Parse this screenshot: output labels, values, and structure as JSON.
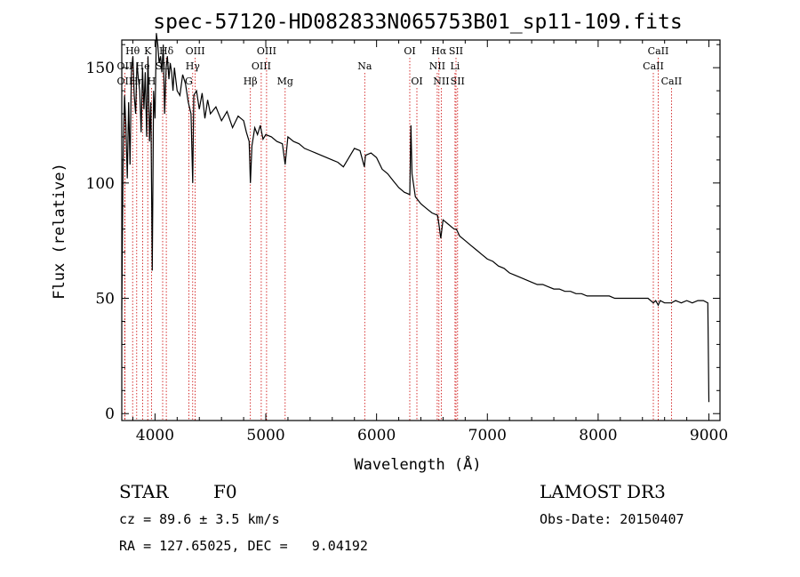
{
  "chart_data": {
    "type": "line",
    "title": "spec-57120-HD082833N065753B01_sp11-109.fits",
    "xlabel": "Wavelength (Å)",
    "ylabel": "Flux (relative)",
    "xlim": [
      3700,
      9100
    ],
    "ylim": [
      -3,
      162
    ],
    "x_ticks": [
      4000,
      5000,
      6000,
      7000,
      8000,
      9000
    ],
    "y_ticks": [
      0,
      50,
      100,
      150
    ],
    "grid": false,
    "series": [
      {
        "x": [
          3700,
          3712,
          3725,
          3737,
          3750,
          3762,
          3775,
          3787,
          3800,
          3812,
          3825,
          3837,
          3850,
          3862,
          3875,
          3887,
          3900,
          3912,
          3925,
          3937,
          3950,
          3962,
          3975,
          3987,
          4000,
          4012,
          4025,
          4037,
          4050,
          4062,
          4075,
          4087,
          4100,
          4112,
          4125,
          4137,
          4150,
          4162,
          4175,
          4187,
          4200,
          4225,
          4250,
          4275,
          4300,
          4325,
          4340,
          4350,
          4375,
          4400,
          4425,
          4450,
          4475,
          4500,
          4550,
          4600,
          4650,
          4700,
          4750,
          4800,
          4825,
          4850,
          4861,
          4875,
          4900,
          4925,
          4950,
          4975,
          5000,
          5050,
          5100,
          5150,
          5175,
          5200,
          5250,
          5300,
          5350,
          5400,
          5450,
          5500,
          5550,
          5600,
          5650,
          5700,
          5750,
          5800,
          5850,
          5890,
          5900,
          5950,
          6000,
          6050,
          6100,
          6150,
          6200,
          6250,
          6300,
          6310,
          6320,
          6350,
          6400,
          6450,
          6500,
          6550,
          6563,
          6580,
          6600,
          6650,
          6700,
          6720,
          6750,
          6800,
          6850,
          6900,
          6950,
          7000,
          7050,
          7100,
          7150,
          7200,
          7250,
          7300,
          7350,
          7400,
          7450,
          7500,
          7550,
          7600,
          7650,
          7700,
          7750,
          7800,
          7850,
          7900,
          7950,
          8000,
          8050,
          8100,
          8150,
          8200,
          8250,
          8300,
          8350,
          8400,
          8450,
          8498,
          8520,
          8542,
          8560,
          8600,
          8662,
          8700,
          8750,
          8800,
          8850,
          8900,
          8950,
          8990,
          9000
        ],
        "y": [
          45,
          110,
          138,
          125,
          102,
          135,
          108,
          148,
          155,
          138,
          130,
          152,
          145,
          140,
          122,
          150,
          132,
          148,
          120,
          155,
          118,
          135,
          62,
          140,
          128,
          165,
          160,
          152,
          155,
          148,
          160,
          130,
          150,
          155,
          145,
          152,
          148,
          140,
          150,
          145,
          140,
          138,
          147,
          143,
          135,
          130,
          100,
          138,
          140,
          132,
          139,
          128,
          136,
          130,
          133,
          127,
          131,
          124,
          129,
          127,
          122,
          118,
          100,
          116,
          124,
          121,
          125,
          119,
          121,
          120,
          118,
          117,
          108,
          120,
          118,
          117,
          115,
          114,
          113,
          112,
          111,
          110,
          109,
          107,
          111,
          115,
          114,
          107,
          112,
          113,
          111,
          106,
          104,
          101,
          98,
          96,
          95,
          125,
          104,
          94,
          91,
          89,
          87,
          86,
          82,
          76,
          84,
          82,
          80,
          80,
          77,
          75,
          73,
          71,
          69,
          67,
          66,
          64,
          63,
          61,
          60,
          59,
          58,
          57,
          56,
          56,
          55,
          54,
          54,
          53,
          53,
          52,
          52,
          51,
          51,
          51,
          51,
          51,
          50,
          50,
          50,
          50,
          50,
          50,
          50,
          48,
          49,
          47,
          49,
          48,
          48,
          49,
          48,
          49,
          48,
          49,
          49,
          48,
          5
        ]
      }
    ],
    "lines": [
      {
        "label": "Hθ",
        "x": 3798,
        "row": 1
      },
      {
        "label": "OII",
        "x": 3727,
        "row": 2
      },
      {
        "label": "OII",
        "x": 3727,
        "row": 3
      },
      {
        "label": "Hη",
        "x": 3835,
        "row": 3
      },
      {
        "label": "He",
        "x": 3889,
        "row": 2
      },
      {
        "label": "K",
        "x": 3934,
        "row": 1
      },
      {
        "label": "H",
        "x": 3969,
        "row": 3
      },
      {
        "label": "SII",
        "x": 4069,
        "row": 2
      },
      {
        "label": "Hδ",
        "x": 4102,
        "row": 1
      },
      {
        "label": "OIII",
        "x": 4363,
        "row": 1
      },
      {
        "label": "Hγ",
        "x": 4340,
        "row": 2
      },
      {
        "label": "G",
        "x": 4305,
        "row": 3
      },
      {
        "label": "Hβ",
        "x": 4861,
        "row": 3
      },
      {
        "label": "OIII",
        "x": 4959,
        "row": 2
      },
      {
        "label": "OIII",
        "x": 5007,
        "row": 1
      },
      {
        "label": "Mg",
        "x": 5175,
        "row": 3
      },
      {
        "label": "Na",
        "x": 5893,
        "row": 2
      },
      {
        "label": "OI",
        "x": 6300,
        "row": 1
      },
      {
        "label": "OI",
        "x": 6364,
        "row": 3
      },
      {
        "label": "Hα",
        "x": 6563,
        "row": 1
      },
      {
        "label": "NII",
        "x": 6548,
        "row": 2
      },
      {
        "label": "NII",
        "x": 6584,
        "row": 3
      },
      {
        "label": "SII",
        "x": 6717,
        "row": 1
      },
      {
        "label": "Li",
        "x": 6708,
        "row": 2
      },
      {
        "label": "SII",
        "x": 6731,
        "row": 3
      },
      {
        "label": "CaII",
        "x": 8542,
        "row": 1
      },
      {
        "label": "CaII",
        "x": 8498,
        "row": 2
      },
      {
        "label": "CaII",
        "x": 8662,
        "row": 3
      }
    ]
  },
  "info": {
    "class": "STAR",
    "subclass": "F0",
    "survey": "LAMOST DR3",
    "cz": "cz = 89.6 ± 3.5 km/s",
    "obs_date": "Obs-Date: 20150407",
    "radec": "RA = 127.65025, DEC =   9.04192"
  },
  "colors": {
    "spectrum": "#000000",
    "line_markers": "#cc0000",
    "axes": "#000000"
  }
}
